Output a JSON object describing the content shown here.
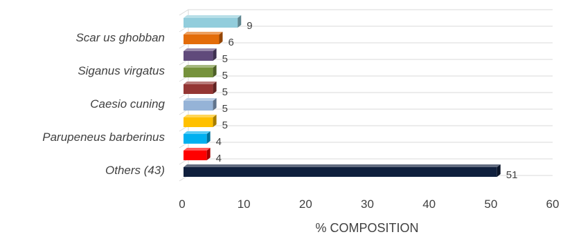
{
  "chart_data": {
    "type": "bar",
    "orientation": "horizontal",
    "style": "3d",
    "title": "",
    "xlabel": "% COMPOSITION",
    "ylabel": "",
    "xlim": [
      0,
      60
    ],
    "x_ticks": [
      0,
      10,
      20,
      30,
      40,
      50,
      60
    ],
    "grid": true,
    "legend": "none",
    "categories": [
      {
        "label": "",
        "value": 9,
        "color": "#92CDDC"
      },
      {
        "label": "Scar us ghobban",
        "value": 6,
        "color": "#E36C09"
      },
      {
        "label": "",
        "value": 5,
        "color": "#604A7B"
      },
      {
        "label": "Siganus virgatus",
        "value": 5,
        "color": "#76923C"
      },
      {
        "label": "",
        "value": 5,
        "color": "#943634"
      },
      {
        "label": "Caesio cuning",
        "value": 5,
        "color": "#95B3D7"
      },
      {
        "label": "",
        "value": 5,
        "color": "#FFC000"
      },
      {
        "label": "Parupeneus barberinus",
        "value": 4,
        "color": "#00B0F0"
      },
      {
        "label": "",
        "value": 4,
        "color": "#FF0000"
      },
      {
        "label": "Others (43)",
        "value": 51,
        "color": "#0F1F3D"
      }
    ]
  }
}
